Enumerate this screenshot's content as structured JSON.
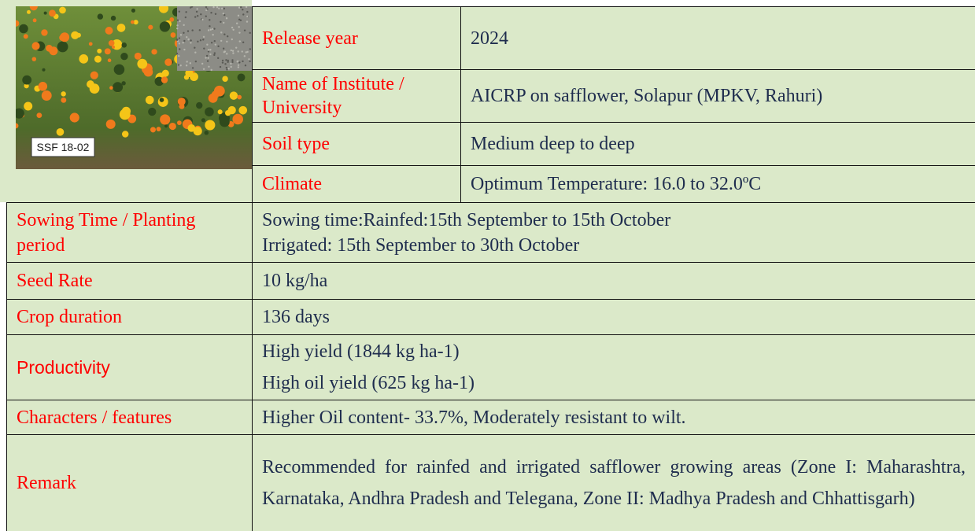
{
  "image": {
    "label": "SSF 18-02"
  },
  "top_rows": [
    {
      "label": "Release year",
      "value": "2024"
    },
    {
      "label": "Name of Institute / University",
      "value": "AICRP on safflower, Solapur (MPKV, Rahuri)"
    },
    {
      "label": "Soil type",
      "value": "Medium deep to deep"
    },
    {
      "label": "Climate",
      "value": "Optimum Temperature: 16.0 to 32.0ºC"
    }
  ],
  "rows": [
    {
      "label": "Sowing Time / Planting period",
      "lines": [
        "Sowing time:Rainfed:15th September to 15th October",
        "Irrigated: 15th September to 30th October"
      ]
    },
    {
      "label": "Seed Rate",
      "value": "10 kg/ha"
    },
    {
      "label": "Crop duration",
      "value": "136 days"
    },
    {
      "label": "Productivity",
      "lines": [
        "High yield (1844 kg ha-1)",
        "High oil yield (625 kg ha-1)"
      ]
    },
    {
      "label": "Characters / features",
      "value": "Higher Oil content- 33.7%, Moderately resistant to wilt."
    },
    {
      "label": "Remark",
      "value": "Recommended for rainfed and irrigated safflower growing areas (Zone I: Maharashtra, Karnataka, Andhra Pradesh and Telegana, Zone II: Madhya Pradesh and Chhattisgarh)"
    }
  ]
}
